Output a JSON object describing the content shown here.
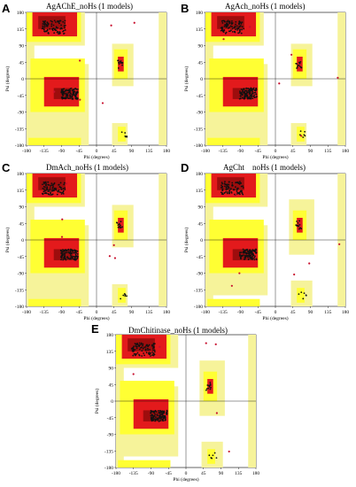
{
  "colors": {
    "core": "#e31a1c",
    "core_dark": "#9e0d0d",
    "allowed": "#ffff33",
    "generous": "#f6f39a",
    "disallowed": "#ffffff",
    "point": "#111111",
    "outlier": "#c8102e"
  },
  "axes": {
    "xlabel": "Phi (degrees)",
    "ylabel": "Psi (degrees)",
    "x_ticks": [
      "-180",
      "-135",
      "-90",
      "-45",
      "0",
      "45",
      "90",
      "135",
      "180"
    ],
    "y_ticks": [
      "180",
      "135",
      "90",
      "45",
      "0",
      "-45",
      "-90",
      "-135",
      "-180"
    ],
    "xlim": [
      -180,
      180
    ],
    "ylim": [
      -180,
      180
    ]
  },
  "panels": [
    {
      "letter": "A",
      "title": "AgAChE_noHs (1 models)",
      "style": "full"
    },
    {
      "letter": "B",
      "title": "AgAch_noHs (1 models)",
      "style": "full"
    },
    {
      "letter": "C",
      "title": "DmAch_noHs (1 models)",
      "style": "full"
    },
    {
      "letter": "D",
      "title": "AgCht    noHs (1 models)",
      "style": "side"
    },
    {
      "letter": "E",
      "title": "DmChitinase_noHs (1 models)",
      "style": "side"
    }
  ]
}
